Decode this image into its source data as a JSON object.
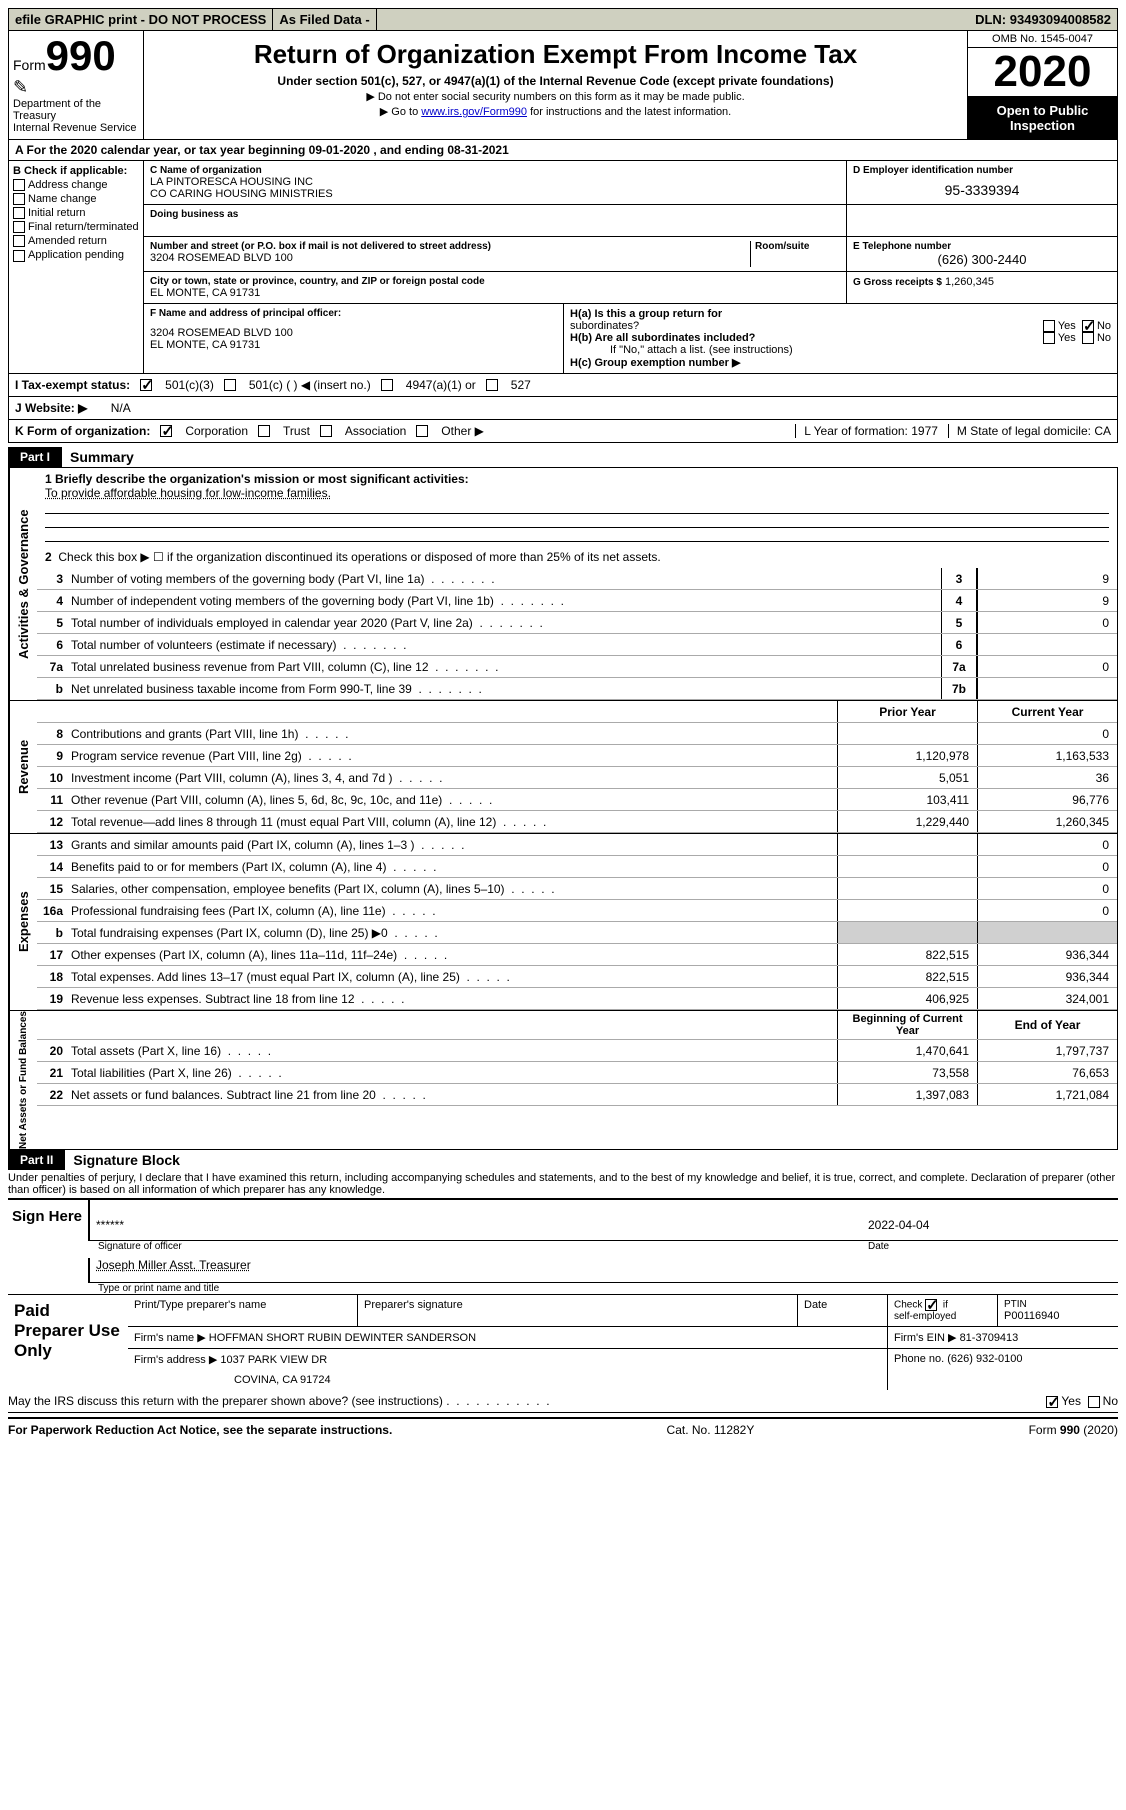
{
  "top_bar": {
    "efile": "efile GRAPHIC print - DO NOT PROCESS",
    "as_filed": "As Filed Data -",
    "dln_label": "DLN:",
    "dln": "93493094008582"
  },
  "header": {
    "form_word": "Form",
    "form_num": "990",
    "dept": "Department of the Treasury",
    "irs": "Internal Revenue Service",
    "title": "Return of Organization Exempt From Income Tax",
    "sub": "Under section 501(c), 527, or 4947(a)(1) of the Internal Revenue Code (except private foundations)",
    "note1": "▶ Do not enter social security numbers on this form as it may be made public.",
    "note2_pre": "▶ Go to ",
    "note2_link": "www.irs.gov/Form990",
    "note2_post": " for instructions and the latest information.",
    "omb": "OMB No. 1545-0047",
    "year": "2020",
    "otp1": "Open to Public",
    "otp2": "Inspection"
  },
  "row_A": "A   For the 2020 calendar year, or tax year beginning 09-01-2020    , and ending 08-31-2021",
  "box_B": {
    "hdr": "B Check if applicable:",
    "items": [
      "Address change",
      "Name change",
      "Initial return",
      "Final return/terminated",
      "Amended return",
      "Application pending"
    ]
  },
  "box_C": {
    "lab_name": "C Name of organization",
    "name1": "LA PINTORESCA HOUSING INC",
    "name2": "CO CARING HOUSING MINISTRIES",
    "dba_lab": "Doing business as",
    "street_lab": "Number and street (or P.O. box if mail is not delivered to street address)",
    "room_lab": "Room/suite",
    "street": "3204 ROSEMEAD BLVD 100",
    "city_lab": "City or town, state or province, country, and ZIP or foreign postal code",
    "city": "EL MONTE, CA  91731"
  },
  "box_D": {
    "lab": "D Employer identification number",
    "val": "95-3339394"
  },
  "box_E": {
    "lab": "E Telephone number",
    "val": "(626) 300-2440"
  },
  "box_G": {
    "lab": "G Gross receipts $",
    "val": "1,260,345"
  },
  "box_F": {
    "lab": "F   Name and address of principal officer:",
    "l1": "3204 ROSEMEAD BLVD 100",
    "l2": "EL MONTE, CA  91731"
  },
  "box_H": {
    "a_lab": "H(a)  Is this a group return for",
    "a_sub": "subordinates?",
    "b_lab": "H(b)  Are all subordinates included?",
    "if_no": "If \"No,\" attach a list. (see instructions)",
    "c_lab": "H(c)  Group exemption number ▶",
    "yes": "Yes",
    "no": "No"
  },
  "row_I": {
    "lab": "I    Tax-exempt status:",
    "o1": "501(c)(3)",
    "o2": "501(c) (   )  ◀ (insert no.)",
    "o3": "4947(a)(1) or",
    "o4": "527"
  },
  "row_J": {
    "lab": "J    Website: ▶",
    "val": "N/A"
  },
  "row_K": {
    "lab": "K Form of organization:",
    "o1": "Corporation",
    "o2": "Trust",
    "o3": "Association",
    "o4": "Other ▶"
  },
  "row_LM": {
    "l": "L Year of formation: 1977",
    "m": "M State of legal domicile: CA"
  },
  "part1": {
    "tag": "Part I",
    "title": "Summary",
    "l1_lab": "1  Briefly describe the organization's mission or most significant activities:",
    "l1_val": "To provide affordable housing for low-income families.",
    "l2": "Check this box ▶ ☐  if the organization discontinued its operations or disposed of more than 25% of its net assets.",
    "gov_label": "Activities & Governance",
    "rev_label": "Revenue",
    "exp_label": "Expenses",
    "net_label": "Net Assets or Fund Balances",
    "prior_hdr": "Prior Year",
    "current_hdr": "Current Year",
    "boy_hdr": "Beginning of Current Year",
    "eoy_hdr": "End of Year",
    "gov_lines": [
      {
        "n": "3",
        "d": "Number of voting members of the governing body (Part VI, line 1a)",
        "box": "3",
        "v": "9"
      },
      {
        "n": "4",
        "d": "Number of independent voting members of the governing body (Part VI, line 1b)",
        "box": "4",
        "v": "9"
      },
      {
        "n": "5",
        "d": "Total number of individuals employed in calendar year 2020 (Part V, line 2a)",
        "box": "5",
        "v": "0"
      },
      {
        "n": "6",
        "d": "Total number of volunteers (estimate if necessary)",
        "box": "6",
        "v": ""
      },
      {
        "n": "7a",
        "d": "Total unrelated business revenue from Part VIII, column (C), line 12",
        "box": "7a",
        "v": "0"
      },
      {
        "n": "b",
        "d": "Net unrelated business taxable income from Form 990-T, line 39",
        "box": "7b",
        "v": ""
      }
    ],
    "rev_lines": [
      {
        "n": "8",
        "d": "Contributions and grants (Part VIII, line 1h)",
        "p": "",
        "c": "0"
      },
      {
        "n": "9",
        "d": "Program service revenue (Part VIII, line 2g)",
        "p": "1,120,978",
        "c": "1,163,533"
      },
      {
        "n": "10",
        "d": "Investment income (Part VIII, column (A), lines 3, 4, and 7d )",
        "p": "5,051",
        "c": "36"
      },
      {
        "n": "11",
        "d": "Other revenue (Part VIII, column (A), lines 5, 6d, 8c, 9c, 10c, and 11e)",
        "p": "103,411",
        "c": "96,776"
      },
      {
        "n": "12",
        "d": "Total revenue—add lines 8 through 11 (must equal Part VIII, column (A), line 12)",
        "p": "1,229,440",
        "c": "1,260,345"
      }
    ],
    "exp_lines": [
      {
        "n": "13",
        "d": "Grants and similar amounts paid (Part IX, column (A), lines 1–3 )",
        "p": "",
        "c": "0"
      },
      {
        "n": "14",
        "d": "Benefits paid to or for members (Part IX, column (A), line 4)",
        "p": "",
        "c": "0"
      },
      {
        "n": "15",
        "d": "Salaries, other compensation, employee benefits (Part IX, column (A), lines 5–10)",
        "p": "",
        "c": "0"
      },
      {
        "n": "16a",
        "d": "Professional fundraising fees (Part IX, column (A), line 11e)",
        "p": "",
        "c": "0"
      },
      {
        "n": "b",
        "d": "Total fundraising expenses (Part IX, column (D), line 25) ▶0",
        "p": "shade",
        "c": "shade"
      },
      {
        "n": "17",
        "d": "Other expenses (Part IX, column (A), lines 11a–11d, 11f–24e)",
        "p": "822,515",
        "c": "936,344"
      },
      {
        "n": "18",
        "d": "Total expenses. Add lines 13–17 (must equal Part IX, column (A), line 25)",
        "p": "822,515",
        "c": "936,344"
      },
      {
        "n": "19",
        "d": "Revenue less expenses. Subtract line 18 from line 12",
        "p": "406,925",
        "c": "324,001"
      }
    ],
    "net_lines": [
      {
        "n": "20",
        "d": "Total assets (Part X, line 16)",
        "p": "1,470,641",
        "c": "1,797,737"
      },
      {
        "n": "21",
        "d": "Total liabilities (Part X, line 26)",
        "p": "73,558",
        "c": "76,653"
      },
      {
        "n": "22",
        "d": "Net assets or fund balances. Subtract line 21 from line 20",
        "p": "1,397,083",
        "c": "1,721,084"
      }
    ]
  },
  "part2": {
    "tag": "Part II",
    "title": "Signature Block",
    "perjury": "Under penalties of perjury, I declare that I have examined this return, including accompanying schedules and statements, and to the best of my knowledge and belief, it is true, correct, and complete. Declaration of preparer (other than officer) is based on all information of which preparer has any knowledge."
  },
  "sign": {
    "left": "Sign Here",
    "stars": "******",
    "sig_lab": "Signature of officer",
    "date": "2022-04-04",
    "date_lab": "Date",
    "name": "Joseph Miller  Asst. Treasurer",
    "name_lab": "Type or print name and title"
  },
  "prep": {
    "left": "Paid Preparer Use Only",
    "r1c1": "Print/Type preparer's name",
    "r1c2": "Preparer's signature",
    "r1c3": "Date",
    "r1c4_lab": "Check ☑ if self-employed",
    "r1c5_lab": "PTIN",
    "r1c5_val": "P00116940",
    "r2_lab": "Firm's name      ▶",
    "r2_val": "HOFFMAN SHORT RUBIN DEWINTER SANDERSON",
    "r2_ein_lab": "Firm's EIN ▶",
    "r2_ein": "81-3709413",
    "r3_lab": "Firm's address ▶",
    "r3_val1": "1037 PARK VIEW DR",
    "r3_val2": "COVINA, CA  91724",
    "r3_ph_lab": "Phone no.",
    "r3_ph": "(626) 932-0100"
  },
  "discuss": {
    "q": "May the IRS discuss this return with the preparer shown above? (see instructions)",
    "yes": "Yes",
    "no": "No"
  },
  "footer": {
    "left": "For Paperwork Reduction Act Notice, see the separate instructions.",
    "mid": "Cat. No. 11282Y",
    "right_pre": "Form ",
    "right_bold": "990",
    "right_post": " (2020)"
  }
}
